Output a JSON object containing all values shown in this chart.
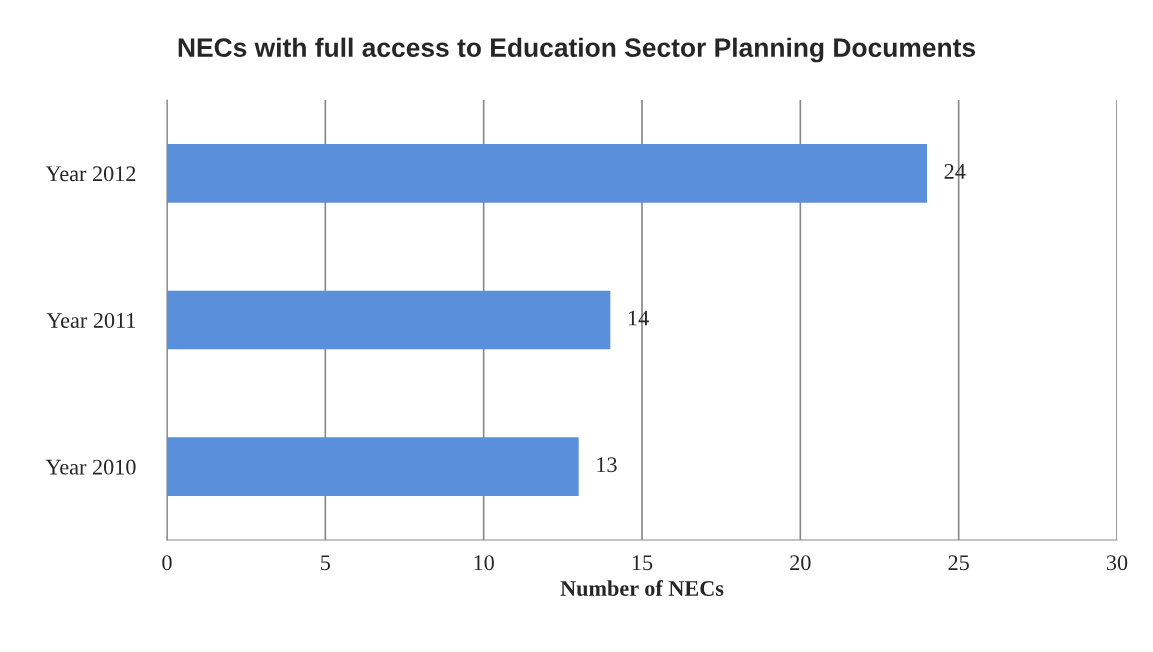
{
  "chart_data": {
    "type": "bar",
    "orientation": "horizontal",
    "title": "NECs with full access to Education Sector Planning Documents",
    "xlabel": "Number of NECs",
    "categories": [
      "Year 2012",
      "Year 2011",
      "Year 2010"
    ],
    "values": [
      24,
      14,
      13
    ],
    "color": "#5a8fdc",
    "xlim": [
      0,
      30
    ],
    "xticks": [
      0,
      5,
      10,
      15,
      20,
      25,
      30
    ],
    "grid": "x",
    "data_labels": true
  }
}
